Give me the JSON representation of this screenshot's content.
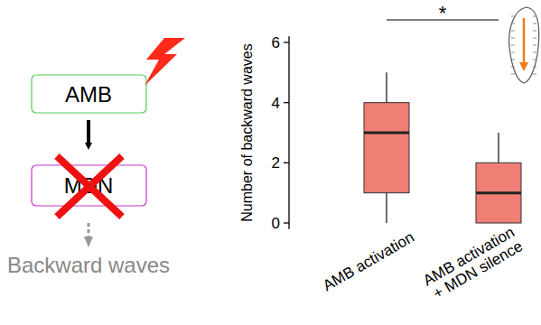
{
  "chart_data": {
    "type": "box",
    "ylabel": "Number of backward waves",
    "categories": [
      "AMB activation",
      "AMB activation\n+ MDN silence"
    ],
    "min": [
      0,
      0
    ],
    "q1": [
      1,
      0
    ],
    "median": [
      3,
      1
    ],
    "q3": [
      4,
      2
    ],
    "max": [
      5,
      3
    ],
    "color": "#ef7f75",
    "ylim": [
      -0.2,
      6.2
    ],
    "yticks": [
      0,
      2,
      4,
      6
    ],
    "annotation": "*"
  },
  "diagram": {
    "nodes": [
      {
        "label": "AMB"
      },
      {
        "label": "MDN"
      }
    ],
    "output": "Backward waves"
  }
}
